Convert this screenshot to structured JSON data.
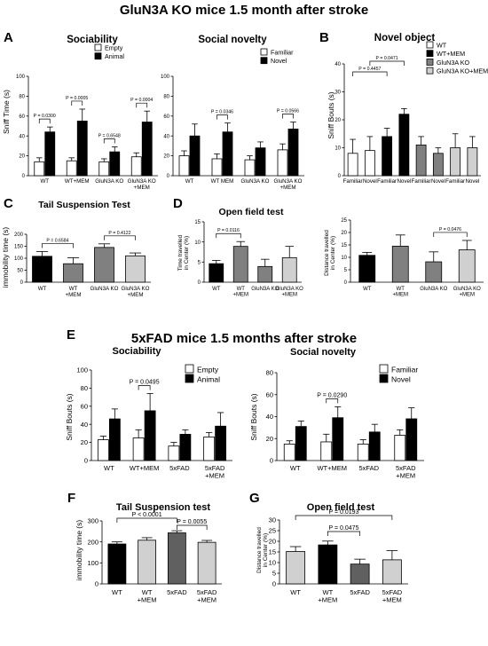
{
  "section_titles": {
    "top": "GluN3A KO mice 1.5 month after stroke",
    "bottom": "5xFAD mice 1.5 months after stroke"
  },
  "chart_data": [
    {
      "id": "A1",
      "panel": "A",
      "type": "bar",
      "title": "Sociability",
      "ylabel": "Sniff Time (s)",
      "ylim": [
        0,
        100
      ],
      "yticks": [
        0,
        20,
        40,
        60,
        80,
        100
      ],
      "categories": [
        "WT",
        "WT+MEM",
        "GluN3A KO",
        "GluN3A KO\n+MEM"
      ],
      "legend": [
        "Empty",
        "Animal"
      ],
      "colors": [
        "#ffffff",
        "#000000"
      ],
      "series": [
        {
          "name": "Empty",
          "values": [
            14,
            15,
            14,
            19
          ],
          "errors": [
            4,
            3,
            3,
            4
          ]
        },
        {
          "name": "Animal",
          "values": [
            44,
            55,
            24,
            54
          ],
          "errors": [
            5,
            12,
            5,
            11
          ]
        }
      ],
      "annotations": [
        {
          "text": "P = 0.0300",
          "cat": 0
        },
        {
          "text": "P = 0.0005",
          "cat": 1
        },
        {
          "text": "P = 0.6548",
          "cat": 2
        },
        {
          "text": "P = 0.0004",
          "cat": 3
        }
      ]
    },
    {
      "id": "A2",
      "panel": "",
      "type": "bar",
      "title": "Social novelty",
      "ylabel": "",
      "ylim": [
        0,
        100
      ],
      "yticks": [
        0,
        20,
        40,
        60,
        80,
        100
      ],
      "categories": [
        "WT",
        "WT MEM",
        "GluN3A KO",
        "GluN3A KO\n+MEM"
      ],
      "legend": [
        "Familiar",
        "Novel"
      ],
      "colors": [
        "#ffffff",
        "#000000"
      ],
      "series": [
        {
          "name": "Familiar",
          "values": [
            20,
            17,
            16,
            26
          ],
          "errors": [
            5,
            5,
            4,
            6
          ]
        },
        {
          "name": "Novel",
          "values": [
            40,
            44,
            28,
            47
          ],
          "errors": [
            12,
            9,
            6,
            7
          ]
        }
      ],
      "annotations": [
        {
          "text": "P = 0.0346",
          "cat": 1
        },
        {
          "text": "P = 0.0566",
          "cat": 3
        }
      ]
    },
    {
      "id": "B",
      "panel": "B",
      "type": "bar",
      "title": "Novel object",
      "ylabel": "Sniff Bouts (s)",
      "ylim": [
        0,
        40
      ],
      "yticks": [
        0,
        10,
        20,
        30,
        40
      ],
      "categories": [
        "Familiar",
        "Novel",
        "Familiar",
        "Novel",
        "Familiar",
        "Novel",
        "Familiar",
        "Novel"
      ],
      "legend": [
        "WT",
        "WT+MEM",
        "GluN3A KO",
        "GluN3A KO+MEM"
      ],
      "colors": [
        "#ffffff",
        "#000000",
        "#808080",
        "#d0d0d0"
      ],
      "values": [
        8,
        9,
        14,
        22,
        11,
        8,
        10,
        10
      ],
      "errors": [
        5,
        5,
        3,
        2,
        3,
        2,
        5,
        4
      ],
      "annotations": [
        {
          "text": "P = 0.0471",
          "from": 1,
          "to": 3
        },
        {
          "text": "P = 0.4457",
          "from": 0,
          "to": 2
        }
      ]
    },
    {
      "id": "C",
      "panel": "C",
      "type": "bar",
      "title": "Tail Suspension Test",
      "ylabel": "immobility time (s)",
      "ylim": [
        0,
        200
      ],
      "yticks": [
        0,
        50,
        100,
        150,
        200
      ],
      "categories": [
        "WT",
        "WT\n+MEM",
        "GluN3A KO",
        "GluN3A KO\n+MEM"
      ],
      "colors": [
        "#000000",
        "#808080",
        "#808080",
        "#d0d0d0"
      ],
      "values": [
        108,
        77,
        145,
        110
      ],
      "errors": [
        20,
        25,
        15,
        12
      ],
      "annotations": [
        {
          "text": "P = 0.6584",
          "from": 0,
          "to": 1
        },
        {
          "text": "P = 0.4122",
          "from": 2,
          "to": 3
        }
      ]
    },
    {
      "id": "D1",
      "panel": "D",
      "type": "bar",
      "title": "Open field test",
      "ylabel": "Time travelled\nin Center (%)",
      "ylim": [
        0,
        15
      ],
      "yticks": [
        0,
        5,
        10,
        15
      ],
      "categories": [
        "WT",
        "WT\n+MEM",
        "GluN3A KO",
        "GluN3A KO\n+MEM"
      ],
      "colors": [
        "#000000",
        "#808080",
        "#808080",
        "#d0d0d0"
      ],
      "values": [
        4.6,
        8.9,
        3.9,
        6.1
      ],
      "errors": [
        0.8,
        1.2,
        1.8,
        2.8
      ],
      "annotations": [
        {
          "text": "P = 0.0116",
          "from": 0,
          "to": 1
        }
      ]
    },
    {
      "id": "D2",
      "panel": "",
      "type": "bar",
      "title": "",
      "ylabel": "Distance travelled\nin Center (%)",
      "ylim": [
        0,
        25
      ],
      "yticks": [
        0,
        5,
        10,
        15,
        20,
        25
      ],
      "categories": [
        "WT",
        "WT\n+MEM",
        "GluN3A KO",
        "GluN3A KO\n+MEM"
      ],
      "colors": [
        "#000000",
        "#808080",
        "#808080",
        "#d0d0d0"
      ],
      "values": [
        10.8,
        14.5,
        8.2,
        13
      ],
      "errors": [
        1.2,
        4.5,
        4,
        3.8
      ],
      "annotations": [
        {
          "text": "P = 0.0476",
          "from": 2,
          "to": 3
        }
      ]
    },
    {
      "id": "E1",
      "panel": "E",
      "type": "bar",
      "title": "Sociability",
      "ylabel": "Sniff Bouts (s)",
      "ylim": [
        0,
        100
      ],
      "yticks": [
        0,
        20,
        40,
        60,
        80,
        100
      ],
      "categories": [
        "WT",
        "WT+MEM",
        "5xFAD",
        "5xFAD\n+MEM"
      ],
      "legend": [
        "Empty",
        "Animal"
      ],
      "colors": [
        "#ffffff",
        "#000000"
      ],
      "series": [
        {
          "name": "Empty",
          "values": [
            23,
            25,
            16,
            26
          ],
          "errors": [
            4,
            9,
            4,
            5
          ]
        },
        {
          "name": "Animal",
          "values": [
            46,
            55,
            29,
            38
          ],
          "errors": [
            11,
            19,
            5,
            15
          ]
        }
      ],
      "annotations": [
        {
          "text": "P = 0.0495",
          "cat": 1
        }
      ]
    },
    {
      "id": "E2",
      "panel": "",
      "type": "bar",
      "title": "Social novelty",
      "ylabel": "Sniff Bouts (s)",
      "ylim": [
        0,
        80
      ],
      "yticks": [
        0,
        20,
        40,
        60,
        80
      ],
      "categories": [
        "WT",
        "WT+MEM",
        "5xFAD",
        "5xFAD\n+MEM"
      ],
      "legend": [
        "Familiar",
        "Novel"
      ],
      "colors": [
        "#ffffff",
        "#000000"
      ],
      "series": [
        {
          "name": "Familiar",
          "values": [
            15,
            17,
            15,
            23
          ],
          "errors": [
            3,
            7,
            4,
            5
          ]
        },
        {
          "name": "Novel",
          "values": [
            31,
            39,
            26,
            38
          ],
          "errors": [
            5,
            10,
            7,
            10
          ]
        }
      ],
      "annotations": [
        {
          "text": "P = 0.0290",
          "cat": 1
        }
      ]
    },
    {
      "id": "F",
      "panel": "F",
      "type": "bar",
      "title": "Tail Suspension test",
      "ylabel": "immobility time (s)",
      "ylim": [
        0,
        300
      ],
      "yticks": [
        0,
        100,
        200,
        300
      ],
      "categories": [
        "WT",
        "WT\n+MEM",
        "5xFAD",
        "5xFAD\n+MEM"
      ],
      "colors": [
        "#000000",
        "#d0d0d0",
        "#606060",
        "#d0d0d0"
      ],
      "values": [
        190,
        208,
        243,
        198
      ],
      "errors": [
        10,
        12,
        10,
        9
      ],
      "annotations": [
        {
          "text": "P < 0.0001",
          "from": 0,
          "to": 2
        },
        {
          "text": "P = 0.0055",
          "from": 2,
          "to": 3
        }
      ]
    },
    {
      "id": "G",
      "panel": "G",
      "type": "bar",
      "title": "Open field test",
      "ylabel": "Distance travelled\nin Center (%)",
      "ylim": [
        0,
        30
      ],
      "yticks": [
        0,
        5,
        10,
        15,
        20,
        25,
        30
      ],
      "categories": [
        "WT",
        "WT\n+MEM",
        "5xFAD",
        "5xFAD\n+MEM"
      ],
      "colors": [
        "#d0d0d0",
        "#000000",
        "#606060",
        "#d0d0d0"
      ],
      "values": [
        15.2,
        18.3,
        9.3,
        11.3
      ],
      "errors": [
        2.3,
        1.8,
        2.3,
        4.3
      ],
      "annotations": [
        {
          "text": "P = 0.0193",
          "from": 0,
          "to": 3
        },
        {
          "text": "P = 0.0475",
          "from": 1,
          "to": 2
        }
      ]
    }
  ]
}
